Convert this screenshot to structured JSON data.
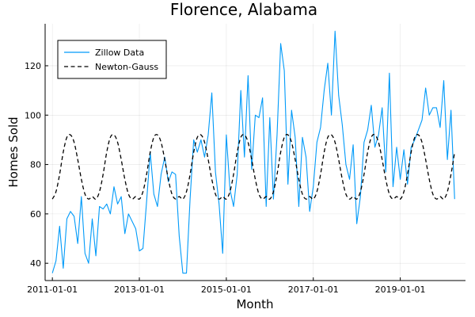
{
  "chart_data": {
    "type": "line",
    "title": "Florence, Alabama",
    "xlabel": "Month",
    "ylabel": "Homes Sold",
    "xlim": [
      "2010-11-01",
      "2020-07-01"
    ],
    "ylim": [
      33,
      137
    ],
    "x_ticks": [
      "2011-01-01",
      "2013-01-01",
      "2015-01-01",
      "2017-01-01",
      "2019-01-01"
    ],
    "y_ticks": [
      40,
      60,
      80,
      100,
      120
    ],
    "grid": true,
    "legend_position": "top-left",
    "x_start": "2011-01-01",
    "x_step": "month",
    "series": [
      {
        "name": "Zillow Data",
        "color": "#009AF9",
        "style": "solid",
        "values": [
          36,
          41,
          55,
          38,
          58,
          61,
          59,
          48,
          67,
          44,
          40,
          58,
          43,
          63,
          62,
          64,
          60,
          71,
          64,
          67,
          52,
          60,
          57,
          54,
          45,
          46,
          65,
          85,
          68,
          63,
          76,
          83,
          73,
          77,
          76,
          51,
          36,
          36,
          66,
          90,
          85,
          90,
          83,
          92,
          109,
          77,
          64,
          44,
          92,
          70,
          63,
          76,
          110,
          83,
          116,
          78,
          100,
          99,
          107,
          63,
          99,
          66,
          92,
          129,
          118,
          72,
          102,
          91,
          63,
          91,
          83,
          61,
          71,
          89,
          95,
          110,
          121,
          100,
          134,
          108,
          96,
          80,
          74,
          88,
          56,
          67,
          89,
          94,
          104,
          87,
          92,
          103,
          77,
          117,
          71,
          87,
          74,
          86,
          72,
          87,
          90,
          94,
          98,
          111,
          100,
          103,
          103,
          95,
          114,
          82,
          102,
          66
        ]
      },
      {
        "name": "Newton-Gauss",
        "color": "#000000",
        "style": "dashed",
        "period": 12,
        "values": [
          66,
          69,
          76,
          85,
          91,
          92,
          89,
          82,
          74,
          68,
          66,
          67
        ]
      }
    ]
  }
}
